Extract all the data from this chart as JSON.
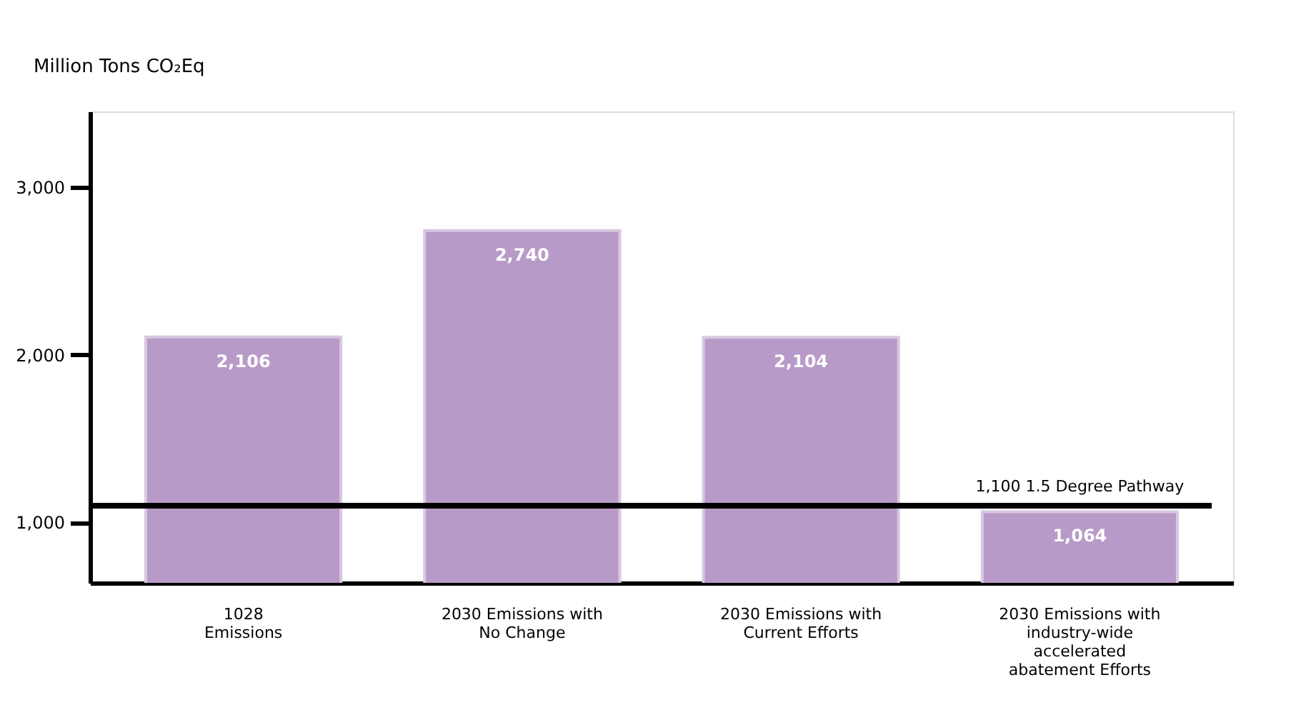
{
  "chart_data": {
    "type": "bar",
    "ylabel": "Million Tons CO₂Eq",
    "categories": [
      "1028\nEmissions",
      "2030 Emissions with\nNo Change",
      "2030 Emissions with\nCurrent Efforts",
      "2030 Emissions with\nindustry-wide\naccelerated\nabatement Efforts"
    ],
    "values": [
      2106,
      2740,
      2104,
      1064
    ],
    "value_labels": [
      "2,106",
      "2,740",
      "2,104",
      "1,064"
    ],
    "color": "#b89ac8",
    "ylim": [
      640,
      3450
    ],
    "yticks": [
      {
        "value": 1000,
        "label": "1,000"
      },
      {
        "value": 2000,
        "label": "2,000"
      },
      {
        "value": 3000,
        "label": "3,000"
      }
    ],
    "grid": false,
    "ref_lines": [
      {
        "axis": "y",
        "value": 1100,
        "label": "1,100 1.5 Degree Pathway",
        "color": "#000000"
      }
    ]
  }
}
